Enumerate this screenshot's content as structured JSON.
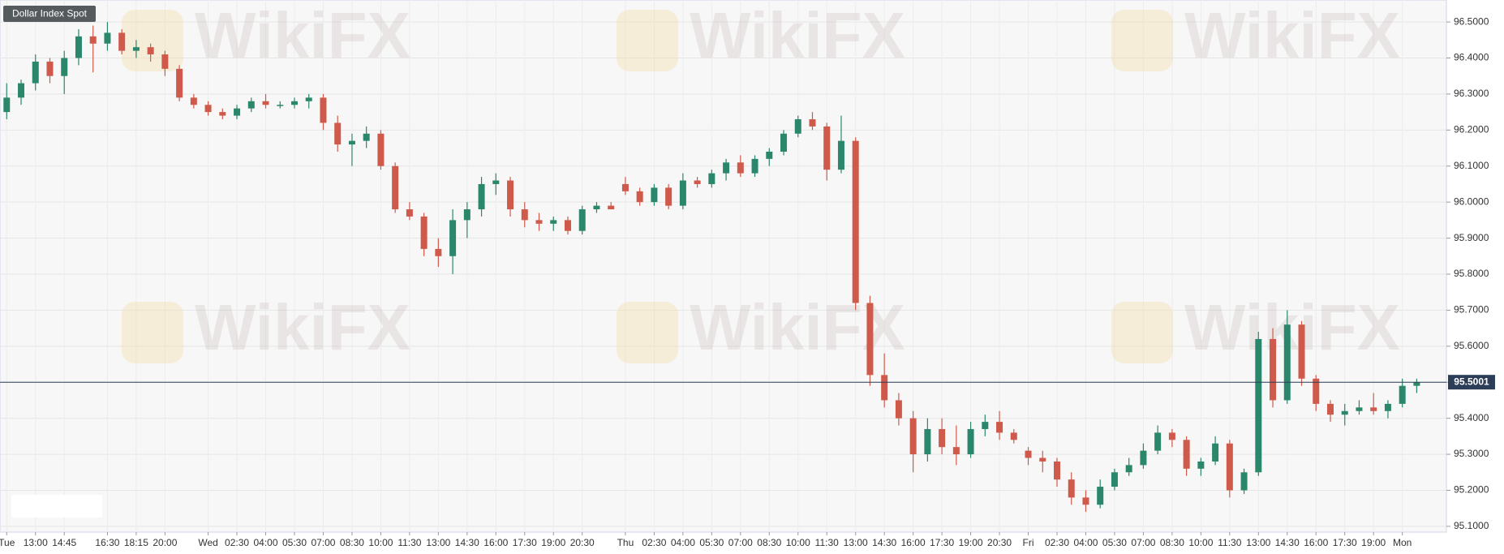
{
  "chart_data": {
    "type": "candlestick",
    "title": "Dollar Index Spot",
    "watermark": "WikiFX",
    "categories": [
      "Tue",
      null,
      "13:00",
      null,
      "14:45",
      null,
      null,
      "16:30",
      null,
      "18:15",
      null,
      "20:00",
      null,
      null,
      "Wed",
      null,
      "02:30",
      null,
      "04:00",
      null,
      "05:30",
      null,
      "07:00",
      null,
      "08:30",
      null,
      "10:00",
      null,
      "11:30",
      null,
      "13:00",
      null,
      "14:30",
      null,
      "16:00",
      null,
      "17:30",
      null,
      "19:00",
      null,
      "20:30",
      null,
      null,
      "Thu",
      null,
      "02:30",
      null,
      "04:00",
      null,
      "05:30",
      null,
      "07:00",
      null,
      "08:30",
      null,
      "10:00",
      null,
      "11:30",
      null,
      "13:00",
      null,
      "14:30",
      null,
      "16:00",
      null,
      "17:30",
      null,
      "19:00",
      null,
      "20:30",
      null,
      "Fri",
      null,
      "02:30",
      null,
      "04:00",
      null,
      "05:30",
      null,
      "07:00",
      null,
      "08:30",
      null,
      "10:00",
      null,
      "11:30",
      null,
      "13:00",
      null,
      "14:30",
      null,
      "16:00",
      null,
      "17:30",
      null,
      "19:00",
      null,
      "Mon",
      null
    ],
    "open": [
      96.25,
      96.29,
      96.33,
      96.39,
      96.35,
      96.4,
      96.46,
      96.44,
      96.47,
      96.42,
      96.43,
      96.41,
      96.37,
      96.29,
      96.27,
      96.25,
      96.24,
      96.26,
      96.28,
      96.27,
      96.27,
      96.28,
      96.29,
      96.22,
      96.16,
      96.17,
      96.19,
      96.1,
      95.98,
      95.96,
      95.87,
      95.85,
      95.95,
      95.98,
      96.05,
      96.06,
      95.98,
      95.95,
      95.94,
      95.95,
      95.92,
      95.98,
      95.99,
      96.05,
      96.03,
      96.0,
      96.04,
      95.99,
      96.06,
      96.05,
      96.08,
      96.11,
      96.08,
      96.12,
      96.14,
      96.19,
      96.23,
      96.21,
      96.09,
      96.17,
      95.72,
      95.52,
      95.45,
      95.4,
      95.3,
      95.37,
      95.32,
      95.3,
      95.37,
      95.39,
      95.36,
      95.31,
      95.29,
      95.28,
      95.23,
      95.18,
      95.16,
      95.21,
      95.25,
      95.27,
      95.31,
      95.36,
      95.34,
      95.26,
      95.28,
      95.33,
      95.2,
      95.25,
      95.62,
      95.45,
      95.66,
      95.51,
      95.44,
      95.41,
      95.42,
      95.43,
      95.42,
      95.44,
      95.49
    ],
    "high": [
      96.33,
      96.34,
      96.41,
      96.4,
      96.42,
      96.48,
      96.49,
      96.5,
      96.48,
      96.45,
      96.44,
      96.42,
      96.38,
      96.3,
      96.28,
      96.26,
      96.27,
      96.29,
      96.3,
      96.28,
      96.29,
      96.3,
      96.3,
      96.24,
      96.19,
      96.21,
      96.2,
      96.11,
      96.0,
      95.97,
      95.9,
      95.98,
      96.0,
      96.07,
      96.08,
      96.07,
      96.0,
      95.97,
      95.96,
      95.96,
      95.99,
      96.0,
      96.0,
      96.07,
      96.04,
      96.05,
      96.05,
      96.08,
      96.07,
      96.09,
      96.12,
      96.13,
      96.13,
      96.15,
      96.2,
      96.24,
      96.25,
      96.22,
      96.24,
      96.18,
      95.74,
      95.58,
      95.47,
      95.42,
      95.4,
      95.4,
      95.38,
      95.39,
      95.41,
      95.42,
      95.37,
      95.32,
      95.31,
      95.29,
      95.25,
      95.2,
      95.23,
      95.26,
      95.29,
      95.33,
      95.38,
      95.37,
      95.35,
      95.29,
      95.35,
      95.34,
      95.26,
      95.64,
      95.65,
      95.7,
      95.67,
      95.52,
      95.45,
      95.44,
      95.45,
      95.47,
      95.45,
      95.51,
      95.51
    ],
    "low": [
      96.23,
      96.27,
      96.31,
      96.33,
      96.3,
      96.38,
      96.36,
      96.42,
      96.41,
      96.4,
      96.39,
      96.35,
      96.28,
      96.26,
      96.24,
      96.23,
      96.23,
      96.25,
      96.26,
      96.26,
      96.26,
      96.26,
      96.2,
      96.14,
      96.1,
      96.15,
      96.09,
      95.97,
      95.95,
      95.85,
      95.82,
      95.8,
      95.9,
      95.96,
      96.02,
      95.96,
      95.93,
      95.92,
      95.92,
      95.91,
      95.91,
      95.97,
      95.98,
      96.02,
      95.99,
      95.99,
      95.98,
      95.98,
      96.04,
      96.04,
      96.06,
      96.07,
      96.07,
      96.1,
      96.13,
      96.18,
      96.2,
      96.06,
      96.08,
      95.7,
      95.49,
      95.43,
      95.38,
      95.25,
      95.28,
      95.3,
      95.27,
      95.29,
      95.35,
      95.34,
      95.33,
      95.27,
      95.25,
      95.21,
      95.16,
      95.14,
      95.15,
      95.2,
      95.24,
      95.26,
      95.3,
      95.32,
      95.24,
      95.24,
      95.27,
      95.18,
      95.19,
      95.24,
      95.43,
      95.44,
      95.49,
      95.42,
      95.39,
      95.38,
      95.41,
      95.41,
      95.4,
      95.43,
      95.47
    ],
    "close": [
      96.29,
      96.33,
      96.39,
      96.35,
      96.4,
      96.46,
      96.44,
      96.47,
      96.42,
      96.43,
      96.41,
      96.37,
      96.29,
      96.27,
      96.25,
      96.24,
      96.26,
      96.28,
      96.27,
      96.27,
      96.28,
      96.29,
      96.22,
      96.16,
      96.17,
      96.19,
      96.1,
      95.98,
      95.96,
      95.87,
      95.85,
      95.95,
      95.98,
      96.05,
      96.06,
      95.98,
      95.95,
      95.94,
      95.95,
      95.92,
      95.98,
      95.99,
      95.98,
      96.03,
      96.0,
      96.04,
      95.99,
      96.06,
      96.05,
      96.08,
      96.11,
      96.08,
      96.12,
      96.14,
      96.19,
      96.23,
      96.21,
      96.09,
      96.17,
      95.72,
      95.52,
      95.45,
      95.4,
      95.3,
      95.37,
      95.32,
      95.3,
      95.37,
      95.39,
      95.36,
      95.34,
      95.29,
      95.28,
      95.23,
      95.18,
      95.16,
      95.21,
      95.25,
      95.27,
      95.31,
      95.36,
      95.34,
      95.26,
      95.28,
      95.33,
      95.2,
      95.25,
      95.62,
      95.45,
      95.66,
      95.51,
      95.44,
      95.41,
      95.42,
      95.43,
      95.42,
      95.44,
      95.49,
      95.5
    ],
    "up_color": "#2b876b",
    "down_color": "#cf5a4b",
    "ylim": [
      95.084,
      96.561
    ],
    "yticks": [
      {
        "value": 95.1,
        "label": "95.1000"
      },
      {
        "value": 95.2,
        "label": "95.2000"
      },
      {
        "value": 95.3,
        "label": "95.3000"
      },
      {
        "value": 95.4,
        "label": "95.4000"
      },
      {
        "value": 95.5,
        "label": "95.5000"
      },
      {
        "value": 95.6,
        "label": "95.6000"
      },
      {
        "value": 95.7,
        "label": "95.7000"
      },
      {
        "value": 95.8,
        "label": "95.8000"
      },
      {
        "value": 95.9,
        "label": "95.9000"
      },
      {
        "value": 96.0,
        "label": "96.0000"
      },
      {
        "value": 96.1,
        "label": "96.1000"
      },
      {
        "value": 96.2,
        "label": "96.2000"
      },
      {
        "value": 96.3,
        "label": "96.3000"
      },
      {
        "value": 96.4,
        "label": "96.4000"
      },
      {
        "value": 96.5,
        "label": "96.5000"
      }
    ],
    "last_price": 95.5001,
    "last_price_color": "#2c3e57",
    "grid": true
  }
}
